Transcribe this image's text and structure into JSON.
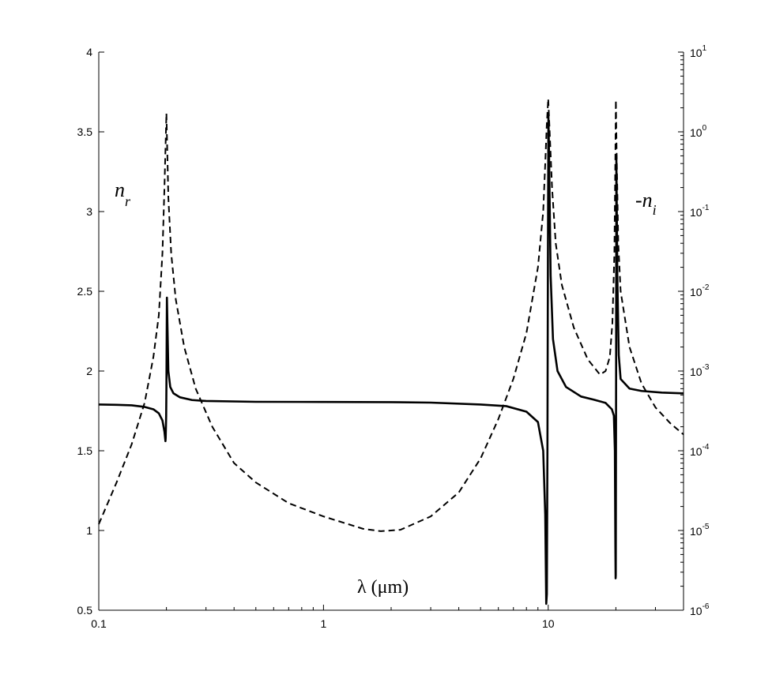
{
  "chart_data": {
    "type": "line",
    "title": "",
    "xlabel": "λ (μm)",
    "x_scale": "log",
    "xlim": [
      0.1,
      40
    ],
    "x_ticks": [
      0.1,
      1,
      10
    ],
    "x_tick_labels": [
      "0.1",
      "1",
      "10"
    ],
    "left_axis": {
      "label": "n",
      "label_sub": "r",
      "scale": "linear",
      "ylim": [
        0.5,
        4
      ],
      "ticks": [
        0.5,
        1,
        1.5,
        2,
        2.5,
        3,
        3.5,
        4
      ],
      "tick_labels": [
        "0.5",
        "1",
        "1.5",
        "2",
        "2.5",
        "3",
        "3.5",
        "4"
      ]
    },
    "right_axis": {
      "label": "-n",
      "label_sub": "i",
      "scale": "log",
      "ylim": [
        1e-06,
        10
      ],
      "ticks": [
        1e-06,
        1e-05,
        0.0001,
        0.001,
        0.01,
        0.1,
        1,
        10
      ],
      "tick_labels": [
        {
          "base": "10",
          "exp": "-6"
        },
        {
          "base": "10",
          "exp": "-5"
        },
        {
          "base": "10",
          "exp": "-4"
        },
        {
          "base": "10",
          "exp": "-3"
        },
        {
          "base": "10",
          "exp": "-2"
        },
        {
          "base": "10",
          "exp": "-1"
        },
        {
          "base": "10",
          "exp": "0"
        },
        {
          "base": "10",
          "exp": "1"
        }
      ]
    },
    "grid": false,
    "series": [
      {
        "style": "solid",
        "axis": "left",
        "points": [
          [
            0.1,
            1.79
          ],
          [
            0.12,
            1.788
          ],
          [
            0.14,
            1.785
          ],
          [
            0.16,
            1.775
          ],
          [
            0.175,
            1.76
          ],
          [
            0.185,
            1.735
          ],
          [
            0.192,
            1.69
          ],
          [
            0.196,
            1.62
          ],
          [
            0.198,
            1.56
          ],
          [
            0.1985,
            1.58
          ],
          [
            0.1995,
            1.72
          ],
          [
            0.2,
            1.9
          ],
          [
            0.201,
            2.46
          ],
          [
            0.202,
            2.3
          ],
          [
            0.204,
            2.0
          ],
          [
            0.208,
            1.9
          ],
          [
            0.215,
            1.86
          ],
          [
            0.23,
            1.835
          ],
          [
            0.26,
            1.818
          ],
          [
            0.3,
            1.812
          ],
          [
            0.5,
            1.807
          ],
          [
            1,
            1.806
          ],
          [
            2,
            1.805
          ],
          [
            3,
            1.802
          ],
          [
            5,
            1.79
          ],
          [
            6.5,
            1.78
          ],
          [
            8,
            1.745
          ],
          [
            9,
            1.68
          ],
          [
            9.5,
            1.5
          ],
          [
            9.7,
            1.1
          ],
          [
            9.8,
            0.54
          ],
          [
            9.86,
            0.6
          ],
          [
            9.92,
            1.5
          ],
          [
            9.97,
            2.7
          ],
          [
            10.02,
            3.6
          ],
          [
            10.1,
            3.3
          ],
          [
            10.25,
            2.6
          ],
          [
            10.5,
            2.2
          ],
          [
            11,
            2.0
          ],
          [
            12,
            1.9
          ],
          [
            14,
            1.84
          ],
          [
            16,
            1.82
          ],
          [
            18,
            1.8
          ],
          [
            19.2,
            1.76
          ],
          [
            19.6,
            1.72
          ],
          [
            19.8,
            1.5
          ],
          [
            19.9,
            0.9
          ],
          [
            19.95,
            0.7
          ],
          [
            19.98,
            0.72
          ],
          [
            20.05,
            2.0
          ],
          [
            20.1,
            3.35
          ],
          [
            20.3,
            2.6
          ],
          [
            20.6,
            2.1
          ],
          [
            21,
            1.95
          ],
          [
            23,
            1.89
          ],
          [
            26,
            1.875
          ],
          [
            32,
            1.865
          ],
          [
            40,
            1.86
          ]
        ]
      },
      {
        "style": "dashed",
        "axis": "right",
        "points": [
          [
            0.1,
            1.2e-05
          ],
          [
            0.12,
            4e-05
          ],
          [
            0.14,
            0.00012
          ],
          [
            0.16,
            0.0004
          ],
          [
            0.175,
            0.0015
          ],
          [
            0.185,
            0.005
          ],
          [
            0.192,
            0.03
          ],
          [
            0.196,
            0.2
          ],
          [
            0.199,
            1.0
          ],
          [
            0.2,
            1.7
          ],
          [
            0.201,
            0.9
          ],
          [
            0.204,
            0.15
          ],
          [
            0.21,
            0.03
          ],
          [
            0.22,
            0.008
          ],
          [
            0.24,
            0.002
          ],
          [
            0.27,
            0.0006
          ],
          [
            0.32,
            0.0002
          ],
          [
            0.4,
            7e-05
          ],
          [
            0.5,
            4e-05
          ],
          [
            0.7,
            2.2e-05
          ],
          [
            1,
            1.5e-05
          ],
          [
            1.5,
            1.05e-05
          ],
          [
            1.8,
            9.8e-06
          ],
          [
            2.2,
            1.02e-05
          ],
          [
            3,
            1.5e-05
          ],
          [
            4,
            3e-05
          ],
          [
            5,
            8e-05
          ],
          [
            6,
            0.00025
          ],
          [
            7,
            0.0008
          ],
          [
            8,
            0.003
          ],
          [
            9,
            0.02
          ],
          [
            9.5,
            0.1
          ],
          [
            9.7,
            0.4
          ],
          [
            9.85,
            1.2
          ],
          [
            10.0,
            2.6
          ],
          [
            10.15,
            1.0
          ],
          [
            10.4,
            0.2
          ],
          [
            10.8,
            0.04
          ],
          [
            11.5,
            0.012
          ],
          [
            13,
            0.0035
          ],
          [
            15,
            0.0014
          ],
          [
            17,
            0.0009
          ],
          [
            18,
            0.001
          ],
          [
            18.8,
            0.0015
          ],
          [
            19.3,
            0.004
          ],
          [
            19.7,
            0.03
          ],
          [
            19.9,
            0.5
          ],
          [
            20.0,
            2.5
          ],
          [
            20.15,
            0.6
          ],
          [
            20.5,
            0.04
          ],
          [
            21,
            0.01
          ],
          [
            23,
            0.002
          ],
          [
            26,
            0.0007
          ],
          [
            30,
            0.00035
          ],
          [
            35,
            0.00022
          ],
          [
            40,
            0.00016
          ]
        ]
      }
    ]
  }
}
